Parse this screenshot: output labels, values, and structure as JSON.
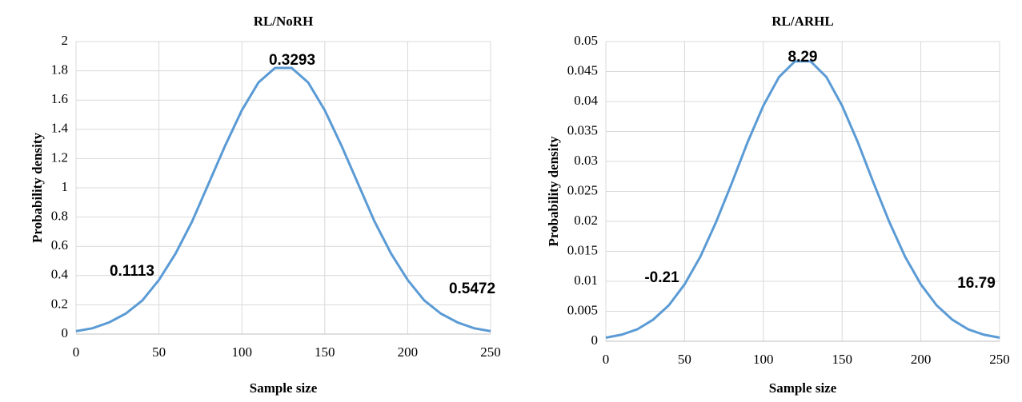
{
  "chart_data": [
    {
      "type": "line",
      "title": "RL/NoRH",
      "x_label": "Sample size",
      "y_label": "Probability density",
      "x": [
        0,
        10,
        20,
        30,
        40,
        50,
        60,
        70,
        80,
        90,
        100,
        110,
        120,
        130,
        140,
        150,
        160,
        170,
        180,
        190,
        200,
        210,
        220,
        230,
        240,
        250
      ],
      "series": [
        {
          "color": "#5b9bd5",
          "values": [
            0.02,
            0.04,
            0.08,
            0.14,
            0.23,
            0.37,
            0.55,
            0.77,
            1.03,
            1.29,
            1.53,
            1.72,
            1.82,
            1.82,
            1.72,
            1.53,
            1.29,
            1.03,
            0.77,
            0.55,
            0.37,
            0.23,
            0.14,
            0.08,
            0.04,
            0.02
          ]
        }
      ],
      "xlim": [
        0,
        250
      ],
      "xticks": [
        0,
        50,
        100,
        150,
        200,
        250
      ],
      "ylim": [
        0,
        2
      ],
      "yticks": [
        0,
        0.2,
        0.4,
        0.6,
        0.8,
        1,
        1.2,
        1.4,
        1.6,
        1.8,
        2
      ],
      "grid": true,
      "annotations": [
        "0.1113",
        "0.3293",
        "0.5472"
      ]
    },
    {
      "type": "line",
      "title": "RL/ARHL",
      "x_label": "Sample size",
      "y_label": "Probability density",
      "x": [
        0,
        10,
        20,
        30,
        40,
        50,
        60,
        70,
        80,
        90,
        100,
        110,
        120,
        130,
        140,
        150,
        160,
        170,
        180,
        190,
        200,
        210,
        220,
        230,
        240,
        250
      ],
      "series": [
        {
          "color": "#5b9bd5",
          "values": [
            0.0006,
            0.0011,
            0.002,
            0.0036,
            0.006,
            0.0095,
            0.0141,
            0.0199,
            0.0264,
            0.0332,
            0.0393,
            0.0441,
            0.0467,
            0.0467,
            0.0441,
            0.0393,
            0.0332,
            0.0264,
            0.0199,
            0.0141,
            0.0095,
            0.006,
            0.0036,
            0.002,
            0.0011,
            0.0006
          ]
        }
      ],
      "xlim": [
        0,
        250
      ],
      "xticks": [
        0,
        50,
        100,
        150,
        200,
        250
      ],
      "ylim": [
        0,
        0.05
      ],
      "yticks": [
        0,
        0.005,
        0.01,
        0.015,
        0.02,
        0.025,
        0.03,
        0.035,
        0.04,
        0.045,
        0.05
      ],
      "grid": true,
      "annotations": [
        "-0.21",
        "8.29",
        "16.79"
      ]
    }
  ]
}
